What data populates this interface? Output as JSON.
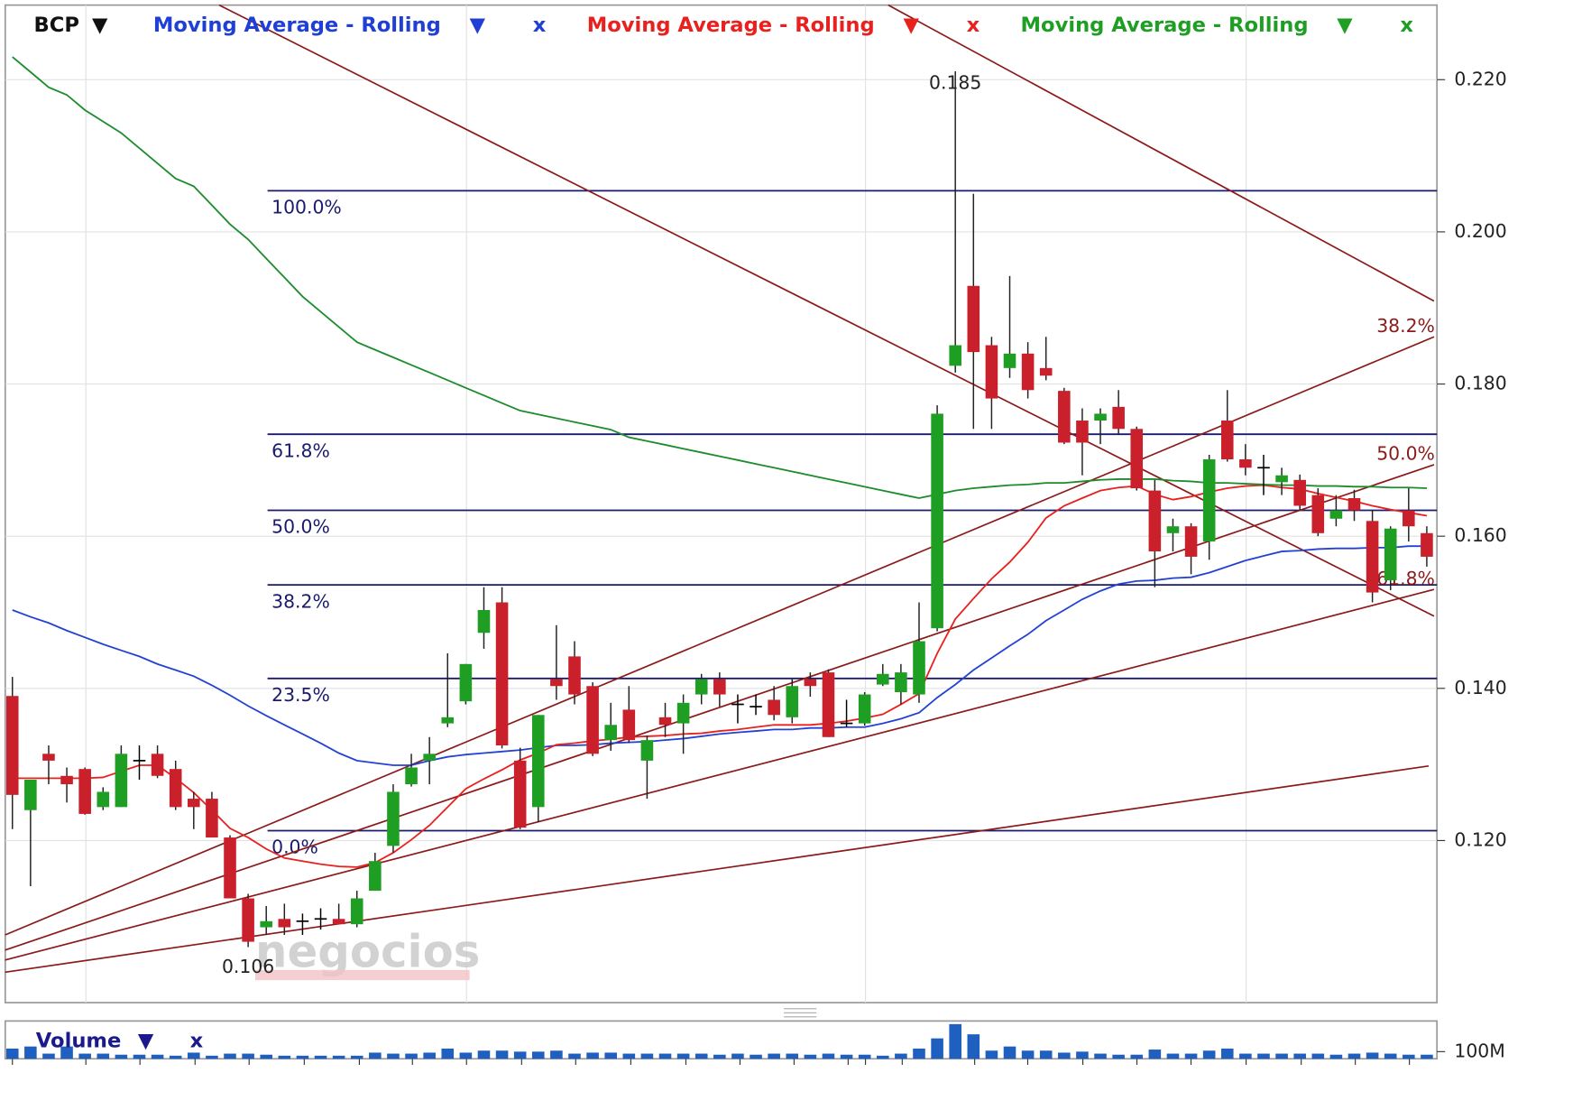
{
  "chart_data": {
    "type": "candlestick",
    "symbol": "BCP",
    "menu_icon": "▼",
    "remove_icon": "x",
    "categories": [
      null,
      null,
      null,
      null,
      null,
      null,
      null,
      null,
      null,
      null,
      null,
      null,
      null,
      null,
      null,
      null,
      null,
      null,
      null,
      null,
      null,
      null,
      null,
      null,
      null,
      null,
      null,
      null,
      null,
      null,
      null,
      null,
      null,
      null,
      null,
      null,
      null,
      null,
      null,
      null,
      null,
      null,
      null,
      null,
      null,
      null,
      null,
      null,
      null,
      null,
      null,
      null,
      null,
      null,
      null,
      null,
      null,
      null,
      null,
      null,
      null,
      null,
      null,
      null,
      null,
      null,
      null,
      null,
      null,
      null,
      null,
      null,
      null,
      null,
      null,
      null,
      null,
      null,
      null
    ],
    "open": [
      0.139,
      0.124,
      0.1314,
      0.1285,
      0.1294,
      0.1244,
      0.1244,
      0.1305,
      0.1314,
      0.1294,
      0.1255,
      0.1255,
      0.1204,
      0.1124,
      0.1086,
      0.1097,
      0.1094,
      0.1097,
      0.1097,
      0.109,
      0.1134,
      0.1193,
      0.1274,
      0.1305,
      0.1354,
      0.1383,
      0.1473,
      0.1513,
      0.1305,
      0.1244,
      0.1412,
      0.1442,
      0.1403,
      0.1332,
      0.1372,
      0.1305,
      0.1362,
      0.1354,
      0.1392,
      0.1412,
      0.1379,
      0.1376,
      0.1385,
      0.1362,
      0.1412,
      0.1421,
      0.1354,
      0.1354,
      0.1405,
      0.1395,
      0.1392,
      0.1479,
      0.1824,
      0.1929,
      0.1851,
      0.1821,
      0.184,
      0.1821,
      0.1791,
      0.1752,
      0.1752,
      0.177,
      0.1741,
      0.166,
      0.1604,
      0.1613,
      0.1593,
      0.1752,
      0.1701,
      0.169,
      0.1671,
      0.1674,
      0.1654,
      0.1623,
      0.165,
      0.162,
      0.1542,
      0.1634,
      0.1604
    ],
    "high": [
      0.1415,
      0.128,
      0.1325,
      0.1296,
      0.1296,
      0.127,
      0.1325,
      0.1325,
      0.1325,
      0.1305,
      0.1264,
      0.1264,
      0.1207,
      0.113,
      0.1114,
      0.1117,
      0.1104,
      0.1111,
      0.1117,
      0.1134,
      0.1184,
      0.1274,
      0.1314,
      0.1336,
      0.1446,
      0.1432,
      0.1533,
      0.1533,
      0.1322,
      0.1365,
      0.1483,
      0.1462,
      0.1408,
      0.1381,
      0.1403,
      0.1338,
      0.1381,
      0.1392,
      0.1419,
      0.1421,
      0.1392,
      0.1392,
      0.1403,
      0.1412,
      0.1421,
      0.1425,
      0.1385,
      0.1395,
      0.1432,
      0.1432,
      0.1513,
      0.1772,
      0.2211,
      0.205,
      0.1862,
      0.1942,
      0.1855,
      0.1862,
      0.1795,
      0.1768,
      0.1768,
      0.1792,
      0.1744,
      0.1674,
      0.1623,
      0.1617,
      0.1707,
      0.1792,
      0.1721,
      0.1707,
      0.169,
      0.1681,
      0.1663,
      0.1654,
      0.1661,
      0.1634,
      0.1613,
      0.1663,
      0.1613
    ],
    "low": [
      0.1215,
      0.114,
      0.1274,
      0.125,
      0.1234,
      0.124,
      0.1244,
      0.128,
      0.1282,
      0.124,
      0.1215,
      0.1204,
      0.1124,
      0.106,
      0.1076,
      0.1076,
      0.1076,
      0.1083,
      0.109,
      0.1086,
      0.1134,
      0.1184,
      0.1271,
      0.1274,
      0.1349,
      0.1379,
      0.1452,
      0.1321,
      0.1215,
      0.1224,
      0.1385,
      0.1379,
      0.1311,
      0.1318,
      0.1328,
      0.1255,
      0.1336,
      0.1314,
      0.1379,
      0.1376,
      0.1354,
      0.1365,
      0.1358,
      0.1354,
      0.1389,
      0.1336,
      0.1349,
      0.1351,
      0.1403,
      0.1379,
      0.1381,
      0.1475,
      0.1815,
      0.1741,
      0.1741,
      0.1808,
      0.1781,
      0.1805,
      0.1721,
      0.168,
      0.1721,
      0.1734,
      0.166,
      0.1533,
      0.158,
      0.155,
      0.1569,
      0.1698,
      0.168,
      0.1654,
      0.1654,
      0.1634,
      0.16,
      0.1613,
      0.162,
      0.1513,
      0.1529,
      0.1593,
      0.156
    ],
    "close": [
      0.126,
      0.128,
      0.1305,
      0.1274,
      0.1235,
      0.1264,
      0.1314,
      0.1305,
      0.1285,
      0.1244,
      0.1244,
      0.1204,
      0.1124,
      0.1067,
      0.1094,
      0.1086,
      0.1094,
      0.1097,
      0.109,
      0.1124,
      0.1173,
      0.1264,
      0.1296,
      0.1314,
      0.1362,
      0.1432,
      0.1503,
      0.1325,
      0.1217,
      0.1365,
      0.1403,
      0.1392,
      0.1314,
      0.1352,
      0.1332,
      0.1332,
      0.1352,
      0.1381,
      0.1412,
      0.1392,
      0.1379,
      0.1376,
      0.1365,
      0.1403,
      0.1403,
      0.1336,
      0.1354,
      0.1392,
      0.1419,
      0.1421,
      0.1462,
      0.1761,
      0.1851,
      0.1842,
      0.1781,
      0.184,
      0.1792,
      0.1811,
      0.1723,
      0.1723,
      0.1761,
      0.1741,
      0.1663,
      0.158,
      0.1613,
      0.1573,
      0.1701,
      0.1701,
      0.169,
      0.169,
      0.168,
      0.164,
      0.1604,
      0.1634,
      0.1634,
      0.1526,
      0.161,
      0.1613,
      0.1573
    ],
    "up_color": "#1f9e24",
    "down_color": "#c9202b",
    "doji_color": "#000000",
    "series": [
      {
        "name": "Moving Average - Rolling",
        "color": "#1f3fd6",
        "line_color": "#2342d4",
        "values": [
          0.1503,
          0.1494,
          0.1486,
          0.1476,
          0.1467,
          0.1458,
          0.145,
          0.1442,
          0.1432,
          0.1424,
          0.1416,
          0.1404,
          0.1391,
          0.1377,
          0.1364,
          0.1352,
          0.134,
          0.1328,
          0.1315,
          0.1305,
          0.1302,
          0.1299,
          0.1299,
          0.1305,
          0.131,
          0.1313,
          0.1315,
          0.1317,
          0.1319,
          0.1322,
          0.1325,
          0.1325,
          0.1326,
          0.1328,
          0.1329,
          0.133,
          0.1332,
          0.1334,
          0.1337,
          0.134,
          0.1342,
          0.1344,
          0.1346,
          0.1346,
          0.1348,
          0.1348,
          0.1349,
          0.1349,
          0.1354,
          0.136,
          0.1368,
          0.1388,
          0.1405,
          0.1424,
          0.144,
          0.1456,
          0.1471,
          0.1489,
          0.1503,
          0.1517,
          0.1528,
          0.1537,
          0.1541,
          0.1542,
          0.1545,
          0.1546,
          0.1552,
          0.156,
          0.1568,
          0.1574,
          0.158,
          0.1581,
          0.1583,
          0.1584,
          0.1584,
          0.1585,
          0.1585,
          0.1587,
          0.1587
        ]
      },
      {
        "name": "Moving Average - Rolling",
        "color": "#e8211f",
        "line_color": "#e8211f",
        "values": [
          0.1282,
          0.1282,
          0.1282,
          0.1282,
          0.1282,
          0.1283,
          0.1291,
          0.1299,
          0.1299,
          0.1282,
          0.1263,
          0.124,
          0.1216,
          0.1204,
          0.1189,
          0.1177,
          0.1173,
          0.1169,
          0.1166,
          0.1165,
          0.1171,
          0.1184,
          0.1201,
          0.122,
          0.1244,
          0.1268,
          0.1281,
          0.1293,
          0.1306,
          0.1315,
          0.1326,
          0.1328,
          0.1331,
          0.1333,
          0.1336,
          0.1337,
          0.1338,
          0.134,
          0.1341,
          0.1344,
          0.1346,
          0.1349,
          0.1352,
          0.1352,
          0.1352,
          0.1354,
          0.1357,
          0.1361,
          0.1366,
          0.1379,
          0.1393,
          0.1446,
          0.1491,
          0.1518,
          0.1544,
          0.1566,
          0.1592,
          0.1624,
          0.164,
          0.165,
          0.166,
          0.1664,
          0.1666,
          0.1655,
          0.1648,
          0.1652,
          0.1658,
          0.1663,
          0.1666,
          0.1667,
          0.1664,
          0.1662,
          0.1656,
          0.1651,
          0.1646,
          0.164,
          0.1635,
          0.1631,
          0.1627
        ]
      },
      {
        "name": "Moving Average - Rolling",
        "color": "#1f9e24",
        "line_color": "#1c8c2c",
        "values": [
          0.223,
          0.221,
          0.219,
          0.218,
          0.216,
          0.2145,
          0.213,
          0.211,
          0.209,
          0.207,
          0.206,
          0.2035,
          0.201,
          0.199,
          0.1965,
          0.194,
          0.1915,
          0.1895,
          0.1875,
          0.1855,
          0.1845,
          0.1835,
          0.1825,
          0.1815,
          0.1805,
          0.1795,
          0.1785,
          0.1775,
          0.1765,
          0.176,
          0.1755,
          0.175,
          0.1745,
          0.174,
          0.173,
          0.1725,
          0.172,
          0.1715,
          0.171,
          0.1705,
          0.17,
          0.1695,
          0.169,
          0.1685,
          0.168,
          0.1675,
          0.167,
          0.1665,
          0.166,
          0.1655,
          0.165,
          0.1655,
          0.166,
          0.1663,
          0.1665,
          0.1667,
          0.1668,
          0.167,
          0.167,
          0.1672,
          0.1674,
          0.1675,
          0.1675,
          0.1675,
          0.1673,
          0.1672,
          0.167,
          0.167,
          0.1669,
          0.1668,
          0.1667,
          0.1667,
          0.1666,
          0.1666,
          0.1665,
          0.1665,
          0.1664,
          0.1664,
          0.1663
        ]
      }
    ],
    "ylim": [
      0.0987,
      0.2298
    ],
    "yticks": [
      {
        "value": 0.12,
        "label": "0.120"
      },
      {
        "value": 0.14,
        "label": "0.140"
      },
      {
        "value": 0.16,
        "label": "0.160"
      },
      {
        "value": 0.18,
        "label": "0.180"
      },
      {
        "value": 0.2,
        "label": "0.200"
      },
      {
        "value": 0.22,
        "label": "0.220"
      }
    ],
    "grid": true,
    "fibonacci": {
      "color": "#1a1a6e",
      "levels": [
        {
          "label": "100.0%",
          "value": 0.2054
        },
        {
          "label": "61.8%",
          "value": 0.1734
        },
        {
          "label": "50.0%",
          "value": 0.1634
        },
        {
          "label": "38.2%",
          "value": 0.1536
        },
        {
          "label": "23.5%",
          "value": 0.1413
        },
        {
          "label": "0.0%",
          "value": 0.1213
        }
      ]
    },
    "trendlines": {
      "color": "#8b1a1a",
      "lines": [
        {
          "x": [
            48.3,
            78.4
          ],
          "y": [
            0.2298,
            0.1909
          ]
        },
        {
          "x": [
            11.4,
            78.4
          ],
          "y": [
            0.2298,
            0.1495
          ]
        },
        {
          "x": [
            -0.4,
            78.4
          ],
          "y": [
            0.1076,
            0.1862
          ],
          "label": "38.2%"
        },
        {
          "x": [
            -0.4,
            78.4
          ],
          "y": [
            0.1056,
            0.1694
          ],
          "label": "50.0%"
        },
        {
          "x": [
            -0.4,
            78.4
          ],
          "y": [
            0.1043,
            0.153
          ],
          "label": "61.8%"
        },
        {
          "x": [
            -0.4,
            78.1
          ],
          "y": [
            0.1027,
            0.1298
          ]
        }
      ]
    },
    "high_label": "0.185",
    "low_label": "0.106",
    "watermark": "negocios",
    "volume": {
      "type": "bar",
      "title": "Volume",
      "color": "#1f5fbf",
      "values": [
        143,
        172,
        72,
        172,
        72,
        72,
        57,
        57,
        57,
        43,
        86,
        43,
        72,
        72,
        57,
        43,
        43,
        43,
        43,
        43,
        86,
        72,
        72,
        86,
        143,
        86,
        114,
        114,
        100,
        100,
        114,
        72,
        86,
        86,
        72,
        72,
        72,
        72,
        72,
        57,
        72,
        57,
        72,
        72,
        57,
        72,
        57,
        57,
        43,
        72,
        143,
        286,
        486,
        343,
        114,
        172,
        114,
        114,
        86,
        100,
        72,
        57,
        57,
        129,
        72,
        72,
        114,
        143,
        72,
        72,
        72,
        72,
        72,
        57,
        72,
        86,
        72,
        57,
        57
      ],
      "ylim": [
        0,
        530
      ],
      "yticks": [
        {
          "value": 100,
          "label": "100M"
        }
      ]
    }
  }
}
